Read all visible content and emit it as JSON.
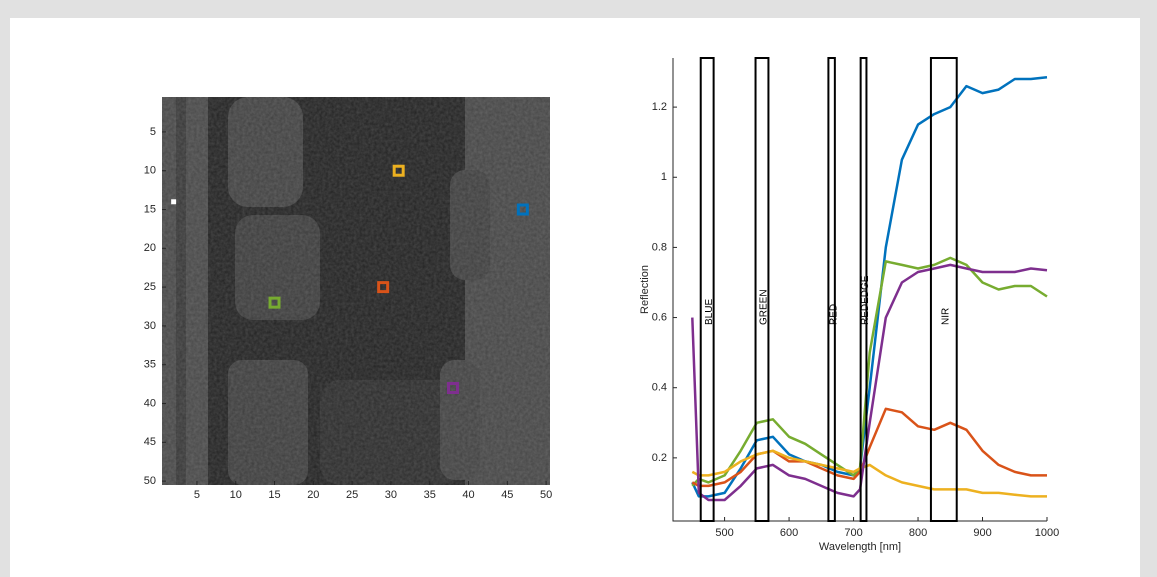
{
  "chart_data": [
    {
      "type": "image",
      "xlim": [
        0.5,
        50.5
      ],
      "ylim": [
        0.5,
        50.5
      ],
      "xticks": [
        5,
        10,
        15,
        20,
        25,
        30,
        35,
        40,
        45,
        50
      ],
      "yticks": [
        5,
        10,
        15,
        20,
        25,
        30,
        35,
        40,
        45,
        50
      ],
      "points": {
        "x": [
          2,
          31,
          47,
          29,
          15,
          38
        ],
        "y": [
          14,
          10,
          15,
          25,
          27,
          38
        ],
        "colors": [
          "#ffffff",
          "#EDB120",
          "#0072BD",
          "#D95319",
          "#77AC30",
          "#7E2F8E"
        ]
      }
    },
    {
      "type": "line",
      "xlabel": "Wavelength [nm]",
      "ylabel": "Reflection",
      "xlim": [
        420,
        1000
      ],
      "ylim": [
        0.02,
        1.34
      ],
      "xticks": [
        500,
        600,
        700,
        800,
        900,
        1000
      ],
      "yticks": [
        0.2,
        0.4,
        0.6,
        0.8,
        1,
        1.2
      ],
      "bands": [
        {
          "name": "BLUE",
          "range": [
            463,
            483
          ]
        },
        {
          "name": "GREEN",
          "range": [
            548,
            568
          ]
        },
        {
          "name": "RED",
          "range": [
            661,
            671
          ]
        },
        {
          "name": "REDEDGE",
          "range": [
            711,
            720
          ]
        },
        {
          "name": "NIR",
          "range": [
            820,
            860
          ]
        }
      ],
      "x": [
        450,
        460,
        475,
        500,
        525,
        550,
        575,
        600,
        625,
        650,
        675,
        700,
        710,
        725,
        750,
        775,
        800,
        825,
        850,
        875,
        900,
        925,
        950,
        975,
        1000
      ],
      "series": [
        {
          "color": "#0072BD",
          "values": [
            0.13,
            0.09,
            0.09,
            0.1,
            0.17,
            0.25,
            0.26,
            0.21,
            0.19,
            0.18,
            0.16,
            0.15,
            0.17,
            0.4,
            0.8,
            1.05,
            1.15,
            1.18,
            1.2,
            1.26,
            1.24,
            1.25,
            1.28,
            1.28,
            1.285
          ]
        },
        {
          "color": "#77AC30",
          "values": [
            0.12,
            0.14,
            0.13,
            0.15,
            0.22,
            0.3,
            0.31,
            0.26,
            0.24,
            0.21,
            0.18,
            0.15,
            0.17,
            0.5,
            0.76,
            0.75,
            0.74,
            0.75,
            0.77,
            0.75,
            0.7,
            0.68,
            0.69,
            0.69,
            0.66
          ]
        },
        {
          "color": "#D95319",
          "values": [
            0.13,
            0.12,
            0.12,
            0.13,
            0.16,
            0.21,
            0.22,
            0.19,
            0.19,
            0.17,
            0.15,
            0.14,
            0.16,
            0.23,
            0.34,
            0.33,
            0.29,
            0.28,
            0.3,
            0.28,
            0.22,
            0.18,
            0.16,
            0.15,
            0.15
          ]
        },
        {
          "color": "#EDB120",
          "values": [
            0.16,
            0.15,
            0.15,
            0.16,
            0.19,
            0.21,
            0.22,
            0.2,
            0.19,
            0.18,
            0.17,
            0.16,
            0.17,
            0.18,
            0.15,
            0.13,
            0.12,
            0.11,
            0.11,
            0.11,
            0.1,
            0.1,
            0.095,
            0.09,
            0.09
          ]
        },
        {
          "color": "#7E2F8E",
          "values": [
            0.6,
            0.1,
            0.08,
            0.08,
            0.12,
            0.17,
            0.18,
            0.15,
            0.14,
            0.12,
            0.1,
            0.09,
            0.11,
            0.3,
            0.6,
            0.7,
            0.73,
            0.74,
            0.75,
            0.74,
            0.73,
            0.73,
            0.73,
            0.74,
            0.735
          ]
        }
      ]
    }
  ]
}
